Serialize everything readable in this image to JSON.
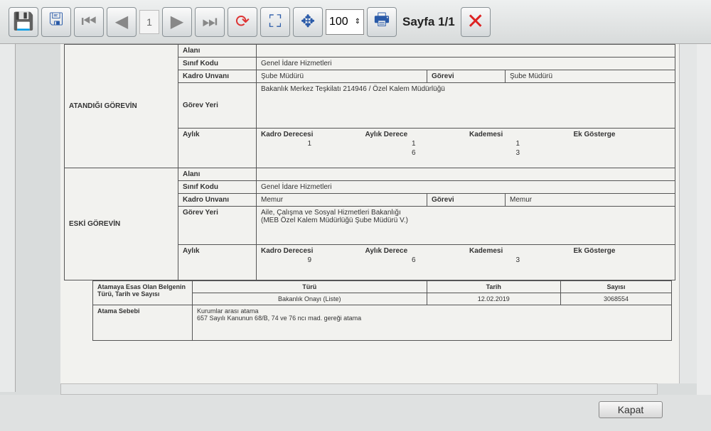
{
  "toolbar": {
    "page_input": "1",
    "zoom": "100",
    "page_label": "Sayfa 1/1"
  },
  "report": {
    "atandigi": {
      "section": "ATANDIĞI GÖREVİN",
      "alani_label": "Alanı",
      "alani": "",
      "sinif_label": "Sınıf Kodu",
      "sinif": "Genel İdare Hizmetleri",
      "kadro_label": "Kadro Unvanı",
      "kadro": "Şube Müdürü",
      "gorevi_label": "Görevi",
      "gorevi": "Şube Müdürü",
      "yer_label": "Görev Yeri",
      "yer": "Bakanlık Merkez Teşkilatı 214946 / Özel Kalem Müdürlüğü",
      "aylik_label": "Aylık",
      "h1": "Kadro Derecesi",
      "h2": "Aylık Derece",
      "h3": "Kademesi",
      "h4": "Ek Gösterge",
      "v1": "1",
      "v2": "1",
      "v2b": "6",
      "v3": "1",
      "v3b": "3",
      "v4": ""
    },
    "eski": {
      "section": "ESKİ GÖREVİN",
      "alani_label": "Alanı",
      "alani": "",
      "sinif_label": "Sınıf Kodu",
      "sinif": "Genel İdare Hizmetleri",
      "kadro_label": "Kadro Unvanı",
      "kadro": "Memur",
      "gorevi_label": "Görevi",
      "gorevi": "Memur",
      "yer_label": "Görev Yeri",
      "yer1": "Aile, Çalışma ve Sosyal Hizmetleri Bakanlığı",
      "yer2": "(MEB Özel Kalem Müdürlüğü Şube Müdürü V.)",
      "aylik_label": "Aylık",
      "h1": "Kadro Derecesi",
      "h2": "Aylık Derece",
      "h3": "Kademesi",
      "h4": "Ek Gösterge",
      "v1": "9",
      "v2": "6",
      "v3": "3",
      "v4": ""
    },
    "belge": {
      "label": "Atamaya Esas Olan Belgenin Türü, Tarih ve Sayısı",
      "h_turu": "Türü",
      "h_tarih": "Tarih",
      "h_sayi": "Sayısı",
      "turu": "Bakanlık Onayı (Liste)",
      "tarih": "12.02.2019",
      "sayi": "3068554"
    },
    "sebep": {
      "label": "Atama Sebebi",
      "line1": "Kurumlar arası atama",
      "line2": "657 Sayılı Kanunun 68/B, 74 ve 76 ncı mad. gereği atama"
    }
  },
  "footer": {
    "close": "Kapat"
  }
}
